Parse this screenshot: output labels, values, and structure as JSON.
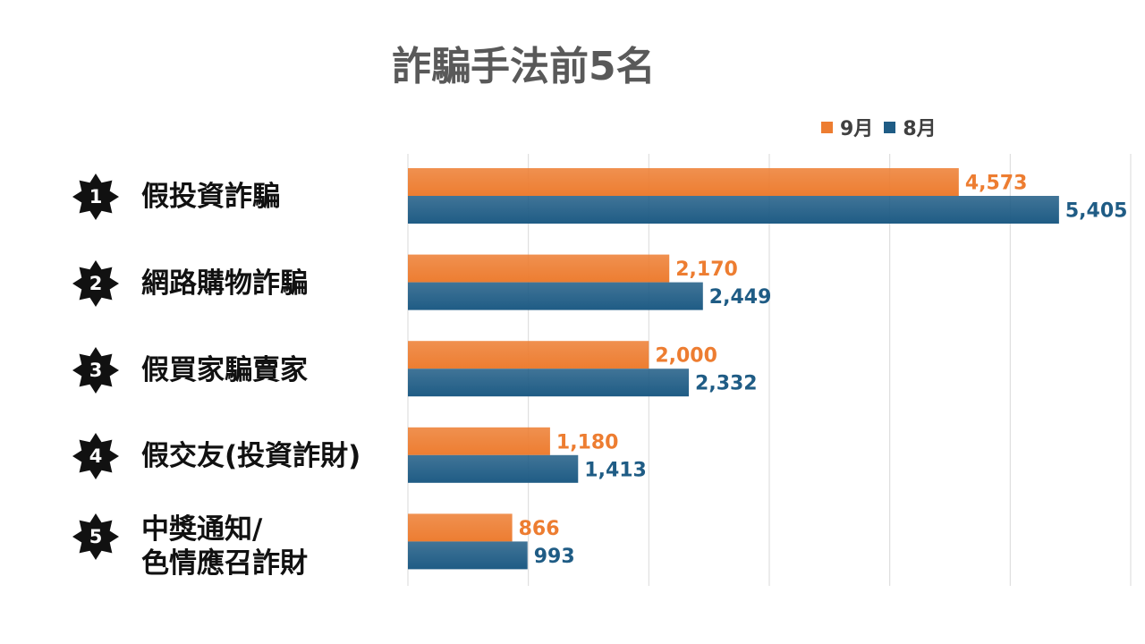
{
  "chart_data": {
    "type": "bar",
    "orientation": "horizontal",
    "title": "詐騙手法前5名",
    "categories": [
      {
        "rank": "1",
        "label": "假投資詐騙"
      },
      {
        "rank": "2",
        "label": "網路購物詐騙"
      },
      {
        "rank": "3",
        "label": "假買家騙賣家"
      },
      {
        "rank": "4",
        "label": "假交友(投資詐財)"
      },
      {
        "rank": "5",
        "label": "中獎通知/\n色情應召詐財"
      }
    ],
    "series": [
      {
        "name": "9月",
        "color": "#ED7D31",
        "values": [
          4573,
          2170,
          2000,
          1180,
          866
        ],
        "value_labels": [
          "4,573",
          "2,170",
          "2,000",
          "1,180",
          "866"
        ]
      },
      {
        "name": "8月",
        "color": "#1F5C85",
        "values": [
          5405,
          2449,
          2332,
          1413,
          993
        ],
        "value_labels": [
          "5,405",
          "2,449",
          "2,332",
          "1,413",
          "993"
        ]
      }
    ],
    "xlim": [
      0,
      6000
    ],
    "x_gridlines": [
      0,
      1000,
      2000,
      3000,
      4000,
      5000,
      6000
    ],
    "grid": true,
    "legend_position": "top-right",
    "data_labels": true
  }
}
